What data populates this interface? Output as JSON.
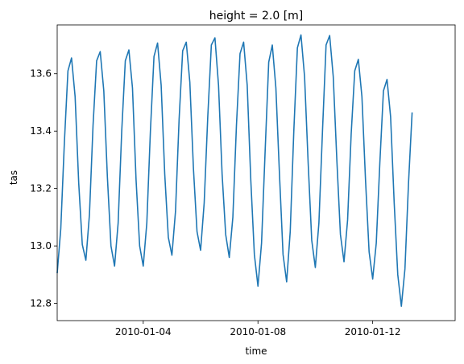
{
  "chart_data": {
    "type": "line",
    "title": "height = 2.0 [m]",
    "xlabel": "time",
    "ylabel": "tas",
    "x_start": "2010-01-01T00:00",
    "x_step_hours": 3,
    "xlim": [
      "2010-01-01T00:00",
      "2010-01-14T21:00"
    ],
    "ylim": [
      12.74,
      13.77
    ],
    "yticks": [
      12.8,
      13.0,
      13.2,
      13.4,
      13.6
    ],
    "ytick_labels": [
      "12.8",
      "13.0",
      "13.2",
      "13.4",
      "13.6"
    ],
    "xticks": [
      "2010-01-04T00:00",
      "2010-01-08T00:00",
      "2010-01-12T00:00"
    ],
    "xtick_labels": [
      "2010-01-04",
      "2010-01-08",
      "2010-01-12"
    ],
    "grid": false,
    "line_color": "#1f77b4",
    "series": [
      {
        "values": [
          12.905,
          13.06,
          13.36,
          13.61,
          13.655,
          13.52,
          13.22,
          13.005,
          12.95,
          13.11,
          13.42,
          13.645,
          13.677,
          13.54,
          13.24,
          13.0,
          12.93,
          13.08,
          13.4,
          13.645,
          13.683,
          13.55,
          13.23,
          13.0,
          12.93,
          13.08,
          13.4,
          13.66,
          13.707,
          13.56,
          13.25,
          13.03,
          12.968,
          13.12,
          13.44,
          13.68,
          13.71,
          13.57,
          13.27,
          13.05,
          12.985,
          13.15,
          13.45,
          13.7,
          13.725,
          13.56,
          13.25,
          13.04,
          12.96,
          13.1,
          13.42,
          13.67,
          13.71,
          13.56,
          13.23,
          12.97,
          12.86,
          13.01,
          13.33,
          13.64,
          13.7,
          13.55,
          13.25,
          12.97,
          12.875,
          13.05,
          13.4,
          13.69,
          13.735,
          13.59,
          13.29,
          13.02,
          12.925,
          13.08,
          13.4,
          13.7,
          13.733,
          13.59,
          13.3,
          13.04,
          12.945,
          13.09,
          13.39,
          13.61,
          13.65,
          13.52,
          13.23,
          12.98,
          12.885,
          13.01,
          13.29,
          13.54,
          13.58,
          13.45,
          13.15,
          12.9,
          12.79,
          12.92,
          13.22,
          13.465
        ]
      }
    ]
  }
}
